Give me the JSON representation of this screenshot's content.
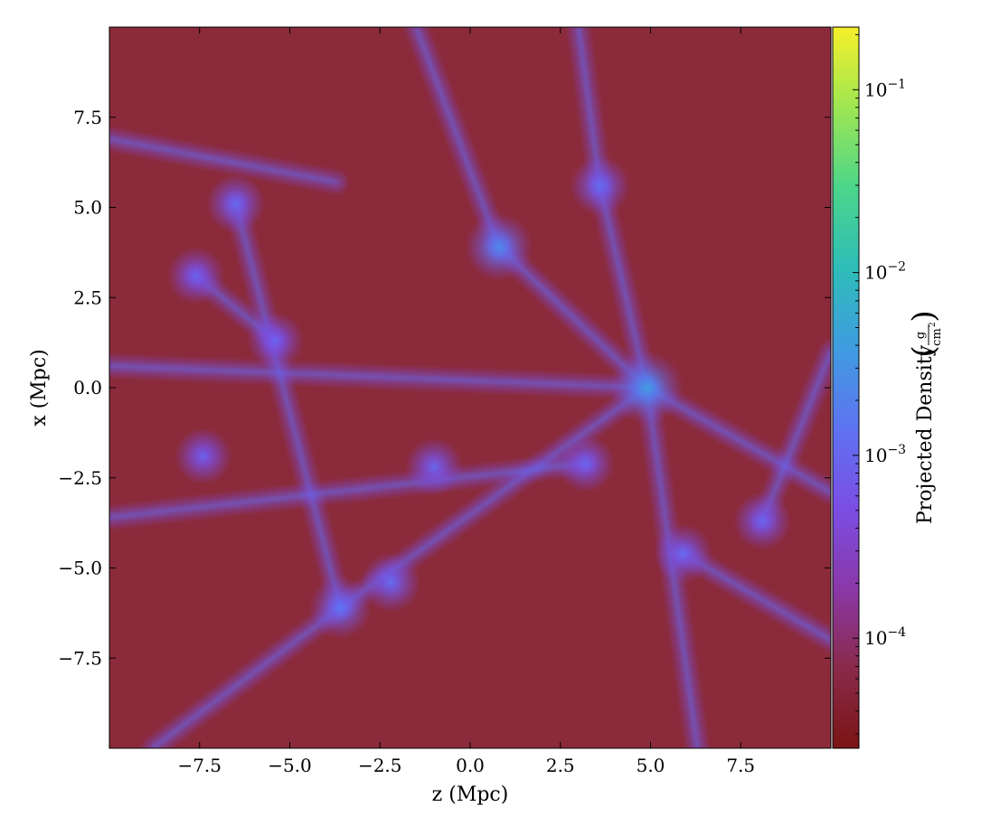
{
  "chart_data": {
    "type": "heatmap",
    "title": "",
    "xlabel": "z  (Mpc)",
    "ylabel": "x  (Mpc)",
    "xlim": [
      -10.0,
      10.0
    ],
    "ylim": [
      -10.0,
      10.0
    ],
    "x_ticks": [
      -7.5,
      -5.0,
      -2.5,
      0.0,
      2.5,
      5.0,
      7.5
    ],
    "x_tick_labels": [
      "−7.5",
      "−5.0",
      "−2.5",
      "0.0",
      "2.5",
      "5.0",
      "7.5"
    ],
    "y_ticks": [
      7.5,
      5.0,
      2.5,
      0.0,
      -2.5,
      -5.0,
      -7.5
    ],
    "y_tick_labels": [
      "7.5",
      "5.0",
      "2.5",
      "0.0",
      "−2.5",
      "−5.0",
      "−7.5"
    ],
    "grid": false,
    "colorbar": {
      "label": "Projected Density",
      "unit_numerator": "g",
      "unit_denominator": "cm",
      "unit_denominator_exponent": "2",
      "scale": "log",
      "range": [
        2.5e-05,
        0.22
      ],
      "ticks": [
        0.0001,
        0.001,
        0.01,
        0.1
      ],
      "tick_labels": [
        {
          "base": "10",
          "exp": "−4"
        },
        {
          "base": "10",
          "exp": "−3"
        },
        {
          "base": "10",
          "exp": "−2"
        },
        {
          "base": "10",
          "exp": "−1"
        }
      ],
      "colormap": [
        "#7a1414",
        "#8a2a4a",
        "#8a38a8",
        "#7b4ee4",
        "#5e73f2",
        "#3f9ce0",
        "#2ebdb8",
        "#4cd68a",
        "#9ee652",
        "#f6f02a"
      ]
    },
    "field": {
      "background_color": "#8b2a3a",
      "halos": [
        {
          "z": 4.9,
          "x": 0.0,
          "density": 0.004
        },
        {
          "z": 0.8,
          "x": 3.9,
          "density": 0.0025
        },
        {
          "z": -3.6,
          "x": -6.1,
          "density": 0.0015
        },
        {
          "z": -2.2,
          "x": -5.4,
          "density": 0.0012
        },
        {
          "z": 3.6,
          "x": 5.6,
          "density": 0.0012
        },
        {
          "z": -6.5,
          "x": 5.1,
          "density": 0.0011
        },
        {
          "z": 5.9,
          "x": -4.6,
          "density": 0.0011
        },
        {
          "z": 8.1,
          "x": -3.7,
          "density": 0.001
        },
        {
          "z": -1.0,
          "x": -2.2,
          "density": 0.001
        },
        {
          "z": 3.2,
          "x": -2.1,
          "density": 0.001
        },
        {
          "z": -7.6,
          "x": 3.1,
          "density": 0.0009
        },
        {
          "z": -5.4,
          "x": 1.3,
          "density": 0.0009
        },
        {
          "z": -7.4,
          "x": -1.9,
          "density": 0.0009
        }
      ],
      "filaments": [
        {
          "from": [
            -10.0,
            0.6
          ],
          "to": [
            4.9,
            0.0
          ]
        },
        {
          "from": [
            -3.6,
            -6.1
          ],
          "to": [
            4.9,
            0.0
          ]
        },
        {
          "from": [
            0.8,
            3.9
          ],
          "to": [
            4.9,
            0.0
          ]
        },
        {
          "from": [
            3.6,
            5.6
          ],
          "to": [
            4.9,
            0.0
          ]
        },
        {
          "from": [
            4.9,
            0.0
          ],
          "to": [
            10.0,
            -2.9
          ]
        },
        {
          "from": [
            4.9,
            0.0
          ],
          "to": [
            6.3,
            -10.0
          ]
        },
        {
          "from": [
            -6.5,
            5.1
          ],
          "to": [
            -3.6,
            -6.1
          ]
        },
        {
          "from": [
            -10.0,
            -3.6
          ],
          "to": [
            3.2,
            -2.1
          ]
        },
        {
          "from": [
            3.6,
            5.6
          ],
          "to": [
            3.0,
            10.0
          ]
        },
        {
          "from": [
            -7.6,
            3.1
          ],
          "to": [
            -5.4,
            1.3
          ]
        },
        {
          "from": [
            -3.6,
            -6.1
          ],
          "to": [
            -8.8,
            -10.0
          ]
        },
        {
          "from": [
            5.9,
            -4.6
          ],
          "to": [
            10.0,
            -7.0
          ]
        },
        {
          "from": [
            0.8,
            3.9
          ],
          "to": [
            -1.5,
            10.0
          ]
        },
        {
          "from": [
            -10.0,
            6.9
          ],
          "to": [
            -3.7,
            5.7
          ]
        },
        {
          "from": [
            8.1,
            -3.7
          ],
          "to": [
            10.0,
            1.0
          ]
        }
      ]
    }
  }
}
